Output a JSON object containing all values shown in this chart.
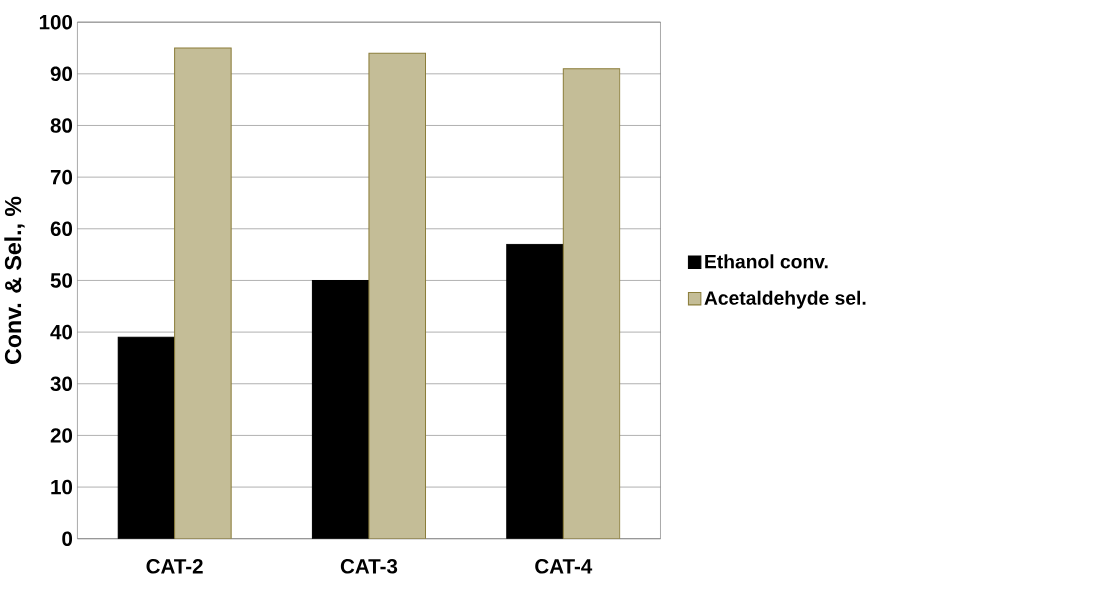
{
  "chart_data": {
    "type": "bar",
    "ylabel": "Conv. & Sel., %",
    "categories": [
      "CAT-2",
      "CAT-3",
      "CAT-4"
    ],
    "series": [
      {
        "name": "Ethanol conv.",
        "color": "#000000",
        "values": [
          39,
          50,
          57
        ]
      },
      {
        "name": "Acetaldehyde sel.",
        "color": "#c4bd97",
        "values": [
          95,
          94,
          91
        ]
      }
    ],
    "ylim": [
      0,
      100
    ],
    "yticks": [
      0,
      10,
      20,
      30,
      40,
      50,
      60,
      70,
      80,
      90,
      100
    ],
    "grid": "y",
    "legend": "right"
  }
}
